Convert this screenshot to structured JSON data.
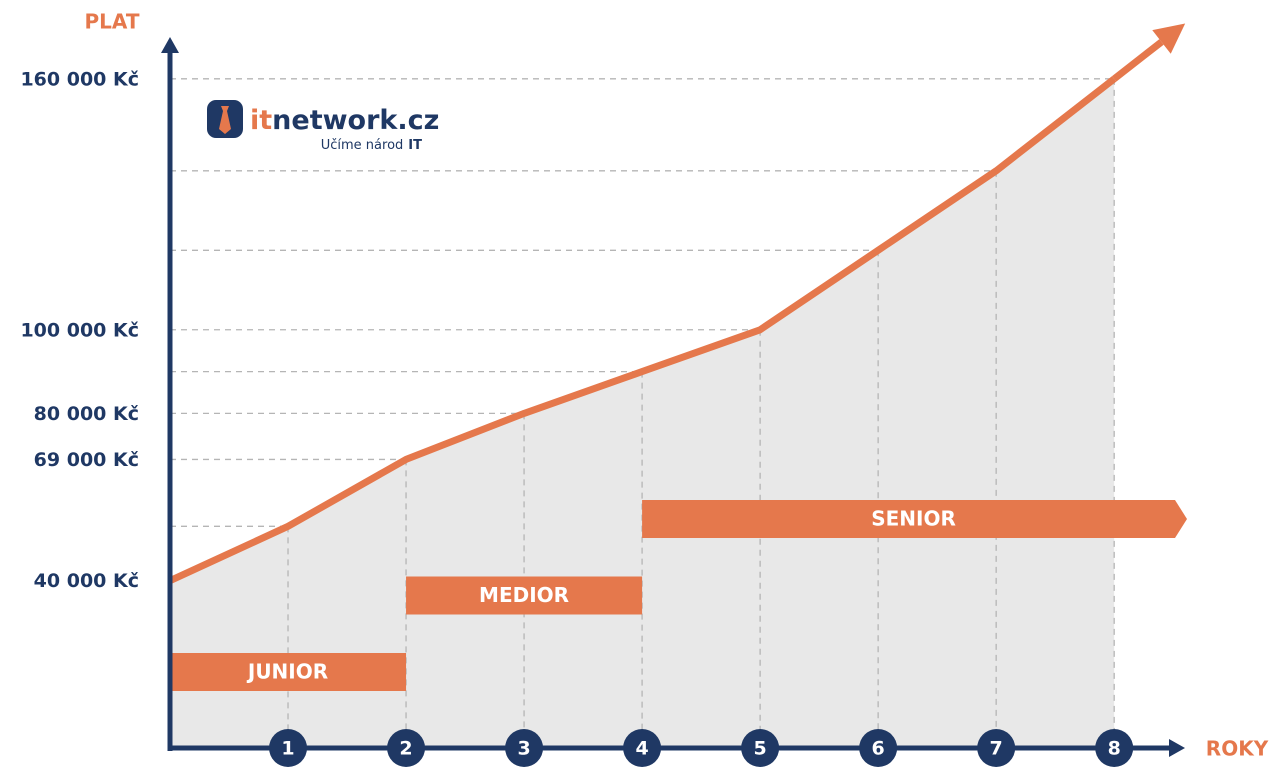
{
  "chart_data": {
    "type": "line",
    "y_label": "PLAT",
    "x_label": "ROKY",
    "x": [
      0,
      1,
      2,
      3,
      4,
      5,
      6,
      7,
      8
    ],
    "series": [
      {
        "color": "#e5784c",
        "values": [
          40000,
          53000,
          69000,
          80000,
          90000,
          100000,
          119000,
          138000,
          160000
        ]
      }
    ],
    "xlim": [
      0,
      8.6
    ],
    "ylim": [
      0,
      170000
    ],
    "xticks": [
      1,
      2,
      3,
      4,
      5,
      6,
      7,
      8
    ],
    "yticks": [
      {
        "value": 40000,
        "label": "40 000 Kč"
      },
      {
        "value": 69000,
        "label": "69 000 Kč"
      },
      {
        "value": 80000,
        "label": "80 000 Kč"
      },
      {
        "value": 100000,
        "label": "100 000 Kč"
      },
      {
        "value": 160000,
        "label": "160 000 Kč"
      }
    ],
    "fill_color": "#e8e8e8",
    "axis_color": "#1f3864",
    "phases": [
      {
        "label": "JUNIOR",
        "from": 0,
        "to": 2
      },
      {
        "label": "MEDIOR",
        "from": 2,
        "to": 4
      },
      {
        "label": "SENIOR",
        "from": 4
      }
    ]
  },
  "logo": {
    "name_prefix": "it",
    "name_rest": "network.cz",
    "tagline": "Učíme národ",
    "tagline_em": "IT"
  }
}
